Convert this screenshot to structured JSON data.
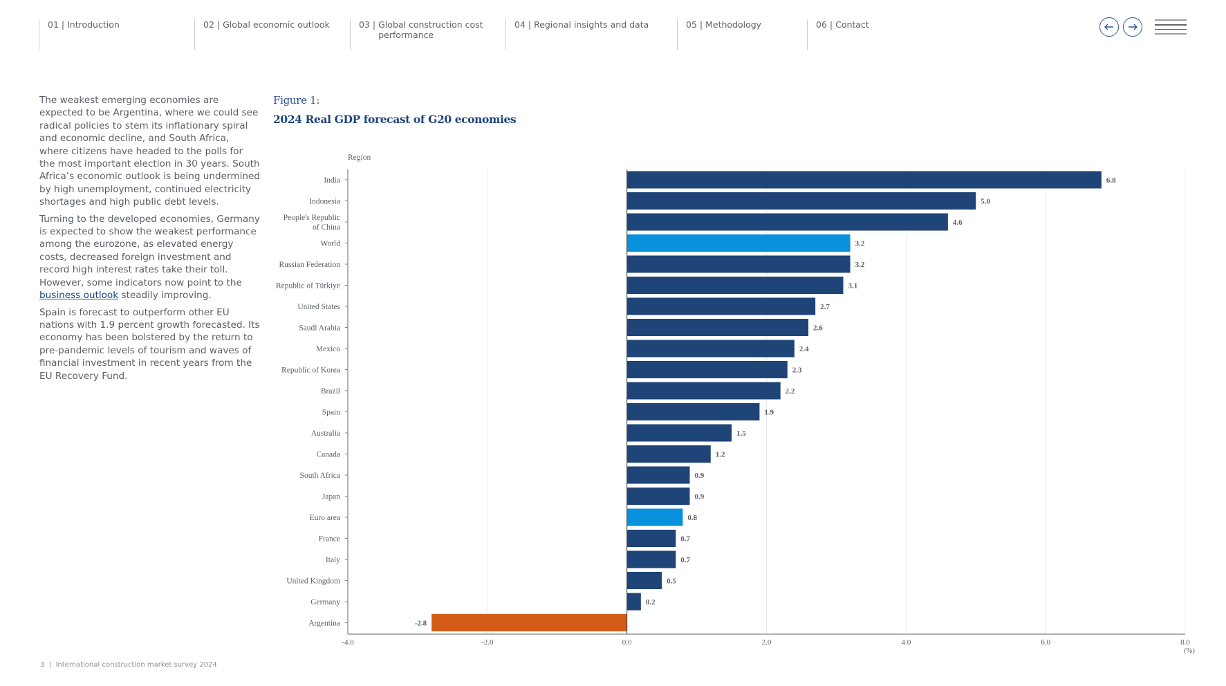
{
  "nav": {
    "items": [
      {
        "num": "01",
        "label": "Introduction"
      },
      {
        "num": "02",
        "label": "Global economic outlook"
      },
      {
        "num": "03",
        "label": "Global construction cost performance"
      },
      {
        "num": "04",
        "label": "Regional insights and data"
      },
      {
        "num": "05",
        "label": "Methodology"
      },
      {
        "num": "06",
        "label": "Contact"
      }
    ],
    "separator": "|",
    "prev_icon": "arrow-left-circle-icon",
    "next_icon": "arrow-right-circle-icon",
    "menu_icon": "hamburger-menu-icon"
  },
  "body": {
    "p1": "The weakest emerging economies are expected to be Argentina, where we could see radical policies to stem its inflationary spiral and economic decline, and South Africa, where citizens have headed to the polls for the most important election in 30 years. South Africa’s economic outlook is being undermined by high unemployment, continued electricity shortages and high public debt levels.",
    "p2_before": "Turning to the developed economies, Germany is expected to show the weakest performance among the eurozone, as elevated energy costs, decreased foreign investment and record high interest rates take their toll. However, some indicators now point to the ",
    "p2_link": "business outlook",
    "p2_after": " steadily improving.",
    "p3": "Spain is forecast to outperform other EU nations with 1.9 percent growth forecasted. Its economy has been bolstered by the return to pre-pandemic levels of tourism and waves of financial investment in recent years from the EU Recovery Fund."
  },
  "figure": {
    "label": "Figure 1:",
    "title": "2024 Real GDP forecast of G20 economies"
  },
  "chart_data": {
    "type": "bar",
    "orientation": "horizontal",
    "title": "2024 Real GDP forecast of G20 economies",
    "ylabel": "Region",
    "xlabel": "(%)",
    "xlim": [
      -4.0,
      8.0
    ],
    "xticks": [
      -4.0,
      -2.0,
      0.0,
      2.0,
      4.0,
      6.0,
      8.0
    ],
    "xtick_labels": [
      "-4.0",
      "-2.0",
      "0.0",
      "2.0",
      "4.0",
      "6.0",
      "8.0"
    ],
    "grid": "vertical",
    "categories": [
      "India",
      "Indonesia",
      "People's Republic of China",
      "World",
      "Russian Federation",
      "Republic of Türkiye",
      "United States",
      "Saudi Arabia",
      "Mexico",
      "Republic of Korea",
      "Brazil",
      "Spain",
      "Australia",
      "Canada",
      "South Africa",
      "Japan",
      "Euro area",
      "France",
      "Italy",
      "United Kingdom",
      "Germany",
      "Argentina"
    ],
    "category_lines": [
      [
        "India"
      ],
      [
        "Indonesia"
      ],
      [
        "People's Republic",
        "of China"
      ],
      [
        "World"
      ],
      [
        "Russian Federation"
      ],
      [
        "Republic of Türkiye"
      ],
      [
        "United States"
      ],
      [
        "Saudi Arabia"
      ],
      [
        "Mexico"
      ],
      [
        "Republic of Korea"
      ],
      [
        "Brazil"
      ],
      [
        "Spain"
      ],
      [
        "Australia"
      ],
      [
        "Canada"
      ],
      [
        "South Africa"
      ],
      [
        "Japan"
      ],
      [
        "Euro area"
      ],
      [
        "France"
      ],
      [
        "Italy"
      ],
      [
        "United Kingdom"
      ],
      [
        "Germany"
      ],
      [
        "Argentina"
      ]
    ],
    "values": [
      6.8,
      5.0,
      4.6,
      3.2,
      3.2,
      3.1,
      2.7,
      2.6,
      2.4,
      2.3,
      2.2,
      1.9,
      1.5,
      1.2,
      0.9,
      0.9,
      0.8,
      0.7,
      0.7,
      0.5,
      0.2,
      -2.8
    ],
    "value_labels": [
      "6.8",
      "5.0",
      "4.6",
      "3.2",
      "3.2",
      "3.1",
      "2.7",
      "2.6",
      "2.4",
      "2.3",
      "2.2",
      "1.9",
      "1.5",
      "1.2",
      "0.9",
      "0.9",
      "0.8",
      "0.7",
      "0.7",
      "0.5",
      "0.2",
      "-2.8"
    ],
    "bar_kind": [
      "country",
      "country",
      "country",
      "aggregate",
      "country",
      "country",
      "country",
      "country",
      "country",
      "country",
      "country",
      "country",
      "country",
      "country",
      "country",
      "country",
      "aggregate",
      "country",
      "country",
      "country",
      "country",
      "negative"
    ],
    "colors": {
      "country": "#1f4478",
      "aggregate": "#0891dc",
      "negative": "#d45c19",
      "grid": "#ececec",
      "axis": "#7b8085",
      "text": "#5a5f66"
    }
  },
  "footer": {
    "page": "3",
    "separator": "|",
    "title": "International construction market survey 2024"
  }
}
